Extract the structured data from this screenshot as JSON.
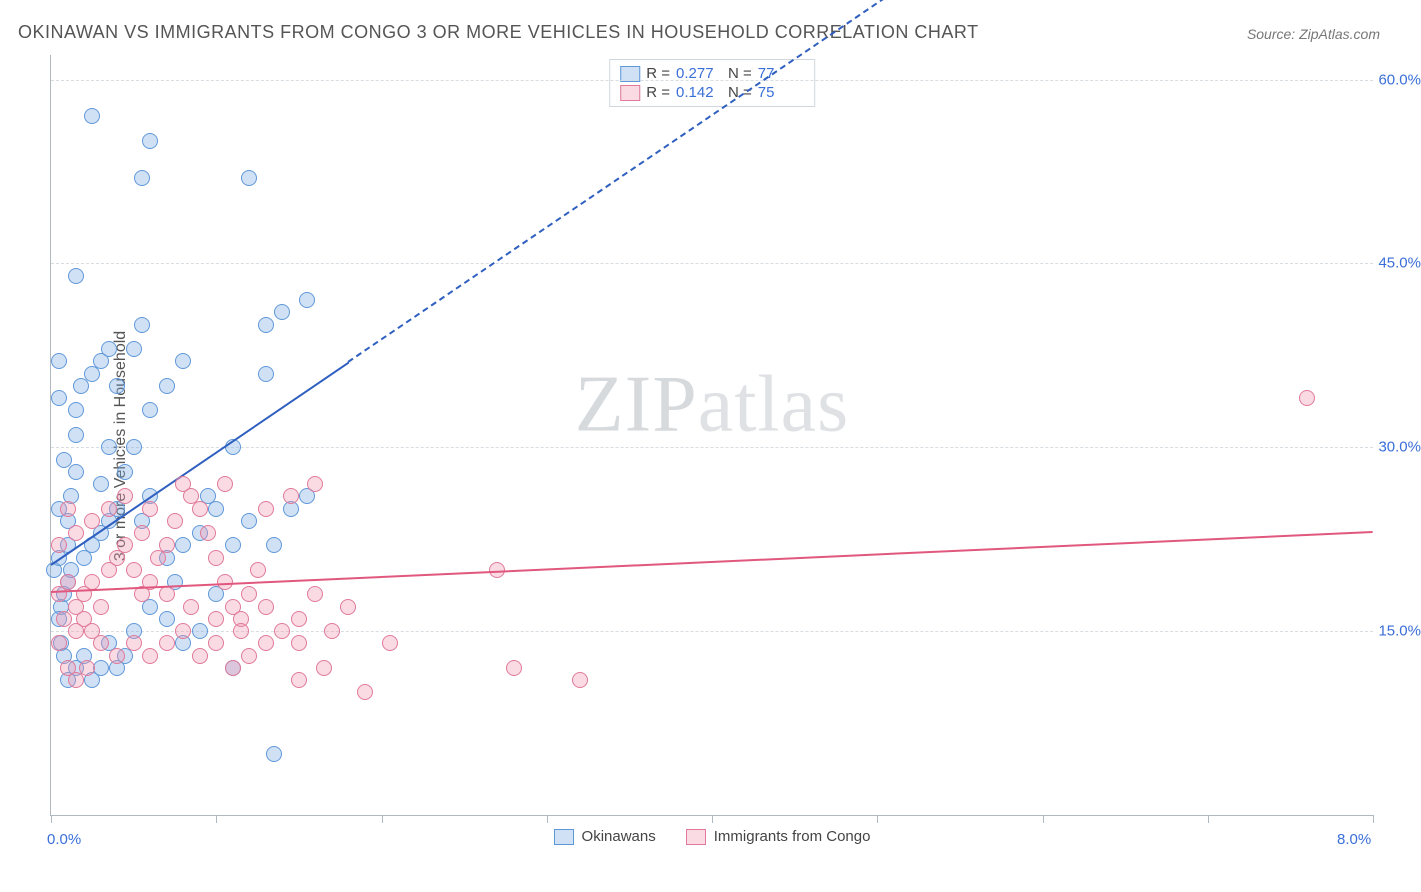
{
  "title": "OKINAWAN VS IMMIGRANTS FROM CONGO 3 OR MORE VEHICLES IN HOUSEHOLD CORRELATION CHART",
  "source": "Source: ZipAtlas.com",
  "y_axis_label": "3 or more Vehicles in Household",
  "watermark_a": "ZIP",
  "watermark_b": "atlas",
  "chart": {
    "type": "scatter",
    "xlim": [
      0,
      8.0
    ],
    "ylim": [
      0,
      62
    ],
    "background_color": "#ffffff",
    "grid_color": "#d8dde2",
    "axis_color": "#b0b8c0",
    "tick_label_color": "#3a6fd8",
    "x_ticks": [
      0.0,
      1.0,
      2.0,
      3.0,
      4.0,
      5.0,
      6.0,
      7.0,
      8.0
    ],
    "x_tick_labels": {
      "0": "0.0%",
      "8": "8.0%"
    },
    "y_ticks": [
      15.0,
      30.0,
      45.0,
      60.0
    ],
    "y_tick_labels": [
      "15.0%",
      "30.0%",
      "45.0%",
      "60.0%"
    ],
    "marker_radius": 8,
    "marker_border_width": 1.5,
    "series": [
      {
        "name": "Okinawans",
        "fill": "rgba(120,170,230,0.35)",
        "stroke": "#5f98d8",
        "line_color": "#2f5fc0",
        "R": "0.277",
        "N": "77",
        "regression": {
          "x1": 0.0,
          "y1": 20.5,
          "x2": 1.8,
          "y2": 37.0,
          "x2_ext": 5.3,
          "y2_ext": 69.0
        },
        "points": [
          [
            0.02,
            20
          ],
          [
            0.05,
            21
          ],
          [
            0.08,
            18
          ],
          [
            0.1,
            22
          ],
          [
            0.1,
            24
          ],
          [
            0.12,
            26
          ],
          [
            0.15,
            28
          ],
          [
            0.15,
            31
          ],
          [
            0.15,
            33
          ],
          [
            0.18,
            35
          ],
          [
            0.05,
            25
          ],
          [
            0.08,
            29
          ],
          [
            0.25,
            36
          ],
          [
            0.3,
            37
          ],
          [
            0.35,
            38
          ],
          [
            0.06,
            17
          ],
          [
            0.1,
            19
          ],
          [
            0.12,
            20
          ],
          [
            0.2,
            21
          ],
          [
            0.25,
            22
          ],
          [
            0.3,
            23
          ],
          [
            0.35,
            24
          ],
          [
            0.4,
            25
          ],
          [
            0.45,
            28
          ],
          [
            0.5,
            30
          ],
          [
            0.55,
            24
          ],
          [
            0.6,
            26
          ],
          [
            0.7,
            21
          ],
          [
            0.75,
            19
          ],
          [
            0.8,
            22
          ],
          [
            0.9,
            23
          ],
          [
            1.0,
            25
          ],
          [
            1.1,
            22
          ],
          [
            1.0,
            18
          ],
          [
            0.9,
            15
          ],
          [
            0.8,
            14
          ],
          [
            0.7,
            16
          ],
          [
            0.6,
            17
          ],
          [
            0.5,
            15
          ],
          [
            0.45,
            13
          ],
          [
            0.4,
            12
          ],
          [
            0.35,
            14
          ],
          [
            0.3,
            12
          ],
          [
            0.25,
            11
          ],
          [
            0.2,
            13
          ],
          [
            0.15,
            12
          ],
          [
            0.1,
            11
          ],
          [
            0.08,
            13
          ],
          [
            0.06,
            14
          ],
          [
            0.05,
            16
          ],
          [
            0.6,
            33
          ],
          [
            0.7,
            35
          ],
          [
            0.8,
            37
          ],
          [
            1.3,
            40
          ],
          [
            1.4,
            41
          ],
          [
            1.55,
            42
          ],
          [
            1.3,
            36
          ],
          [
            1.1,
            30
          ],
          [
            1.2,
            24
          ],
          [
            1.35,
            22
          ],
          [
            1.45,
            25
          ],
          [
            1.55,
            26
          ],
          [
            1.1,
            12
          ],
          [
            1.35,
            5
          ],
          [
            0.6,
            55
          ],
          [
            0.55,
            52
          ],
          [
            0.25,
            57
          ],
          [
            1.2,
            52
          ],
          [
            0.15,
            44
          ],
          [
            0.05,
            34
          ],
          [
            0.05,
            37
          ],
          [
            0.4,
            35
          ],
          [
            0.5,
            38
          ],
          [
            0.55,
            40
          ],
          [
            0.35,
            30
          ],
          [
            0.3,
            27
          ],
          [
            0.95,
            26
          ]
        ]
      },
      {
        "name": "Immigrants from Congo",
        "fill": "rgba(240,150,175,0.35)",
        "stroke": "#e07a9a",
        "line_color": "#e1577e",
        "R": "0.142",
        "N": "75",
        "regression": {
          "x1": 0.0,
          "y1": 18.3,
          "x2": 8.0,
          "y2": 23.2
        },
        "points": [
          [
            0.05,
            18
          ],
          [
            0.1,
            19
          ],
          [
            0.15,
            17
          ],
          [
            0.2,
            18
          ],
          [
            0.25,
            19
          ],
          [
            0.3,
            17
          ],
          [
            0.35,
            20
          ],
          [
            0.4,
            21
          ],
          [
            0.45,
            22
          ],
          [
            0.5,
            20
          ],
          [
            0.55,
            18
          ],
          [
            0.6,
            19
          ],
          [
            0.65,
            21
          ],
          [
            0.7,
            22
          ],
          [
            0.75,
            24
          ],
          [
            0.8,
            27
          ],
          [
            0.85,
            26
          ],
          [
            0.9,
            25
          ],
          [
            0.95,
            23
          ],
          [
            1.0,
            21
          ],
          [
            1.05,
            19
          ],
          [
            1.1,
            17
          ],
          [
            1.15,
            16
          ],
          [
            1.2,
            18
          ],
          [
            1.25,
            20
          ],
          [
            1.3,
            17
          ],
          [
            1.4,
            15
          ],
          [
            1.5,
            16
          ],
          [
            1.6,
            18
          ],
          [
            1.7,
            15
          ],
          [
            1.9,
            10
          ],
          [
            1.6,
            27
          ],
          [
            1.45,
            26
          ],
          [
            1.3,
            25
          ],
          [
            0.3,
            14
          ],
          [
            0.4,
            13
          ],
          [
            0.5,
            14
          ],
          [
            0.6,
            13
          ],
          [
            0.7,
            14
          ],
          [
            0.8,
            15
          ],
          [
            0.9,
            13
          ],
          [
            1.0,
            14
          ],
          [
            1.1,
            12
          ],
          [
            1.2,
            13
          ],
          [
            0.15,
            15
          ],
          [
            0.2,
            16
          ],
          [
            0.25,
            15
          ],
          [
            0.08,
            16
          ],
          [
            0.05,
            14
          ],
          [
            0.1,
            12
          ],
          [
            0.15,
            11
          ],
          [
            0.22,
            12
          ],
          [
            1.65,
            12
          ],
          [
            1.5,
            11
          ],
          [
            1.8,
            17
          ],
          [
            2.05,
            14
          ],
          [
            2.7,
            20
          ],
          [
            2.8,
            12
          ],
          [
            3.2,
            11
          ],
          [
            7.6,
            34
          ],
          [
            1.05,
            27
          ],
          [
            0.6,
            25
          ],
          [
            0.45,
            26
          ],
          [
            0.35,
            25
          ],
          [
            0.25,
            24
          ],
          [
            0.15,
            23
          ],
          [
            0.1,
            25
          ],
          [
            0.05,
            22
          ],
          [
            0.55,
            23
          ],
          [
            0.7,
            18
          ],
          [
            0.85,
            17
          ],
          [
            1.0,
            16
          ],
          [
            1.15,
            15
          ],
          [
            1.3,
            14
          ],
          [
            1.5,
            14
          ]
        ]
      }
    ],
    "stats_box_labels": {
      "R": "R =",
      "N": "N ="
    },
    "bottom_legend_labels": [
      "Okinawans",
      "Immigrants from Congo"
    ]
  }
}
